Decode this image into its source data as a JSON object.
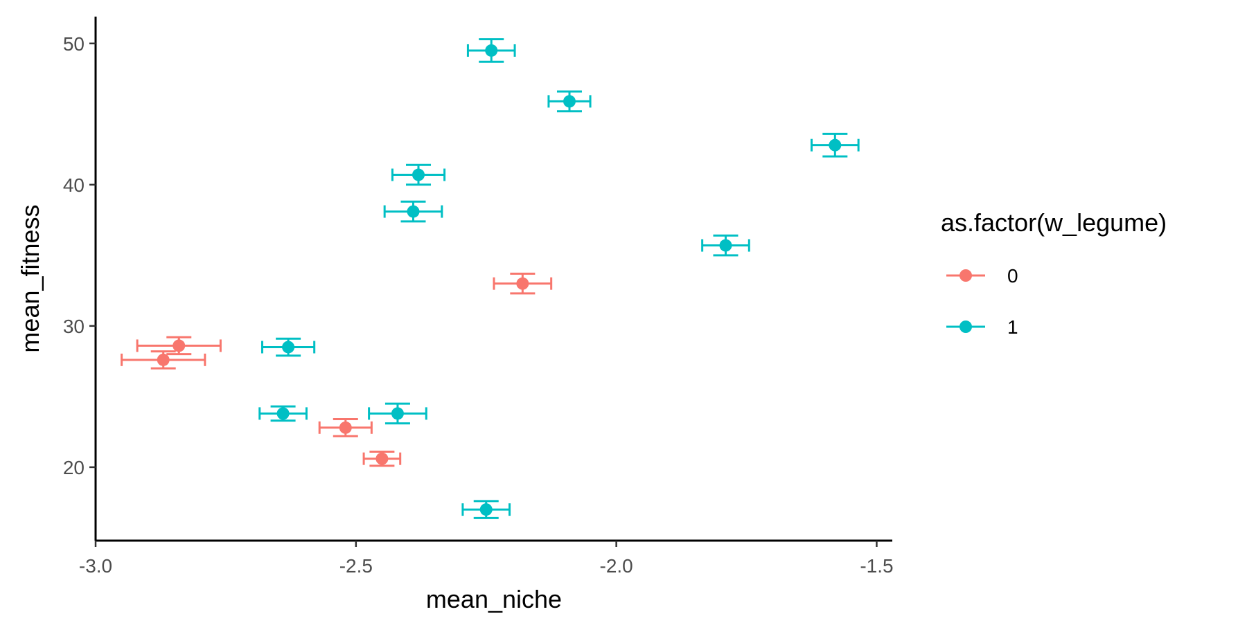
{
  "chart_data": {
    "type": "scatter",
    "xlabel": "mean_niche",
    "ylabel": "mean_fitness",
    "xlim": [
      -3.0,
      -1.47
    ],
    "ylim": [
      14.8,
      51.9
    ],
    "x_ticks": [
      -3.0,
      -2.5,
      -2.0,
      -1.5
    ],
    "x_tick_labels": [
      "-3.0",
      "-2.5",
      "-2.0",
      "-1.5"
    ],
    "y_ticks": [
      20,
      30,
      40,
      50
    ],
    "y_tick_labels": [
      "20",
      "30",
      "40",
      "50"
    ],
    "grid": false,
    "error_bars": "horizontal and vertical",
    "legend": {
      "title": "as.factor(w_legume)",
      "position": "right"
    },
    "series": [
      {
        "name": "0",
        "color": "#F8766D",
        "points": [
          {
            "x": -2.84,
            "y": 28.6,
            "xerr": 0.08,
            "yerr": 0.6
          },
          {
            "x": -2.87,
            "y": 27.6,
            "xerr": 0.08,
            "yerr": 0.6
          },
          {
            "x": -2.52,
            "y": 22.8,
            "xerr": 0.05,
            "yerr": 0.6
          },
          {
            "x": -2.45,
            "y": 20.6,
            "xerr": 0.035,
            "yerr": 0.5
          },
          {
            "x": -2.18,
            "y": 33.0,
            "xerr": 0.055,
            "yerr": 0.7
          }
        ]
      },
      {
        "name": "1",
        "color": "#00BFC4",
        "points": [
          {
            "x": -2.24,
            "y": 49.5,
            "xerr": 0.045,
            "yerr": 0.8
          },
          {
            "x": -2.09,
            "y": 45.9,
            "xerr": 0.04,
            "yerr": 0.7
          },
          {
            "x": -1.58,
            "y": 42.8,
            "xerr": 0.045,
            "yerr": 0.8
          },
          {
            "x": -2.38,
            "y": 40.7,
            "xerr": 0.05,
            "yerr": 0.7
          },
          {
            "x": -2.39,
            "y": 38.1,
            "xerr": 0.055,
            "yerr": 0.7
          },
          {
            "x": -1.79,
            "y": 35.7,
            "xerr": 0.045,
            "yerr": 0.7
          },
          {
            "x": -2.63,
            "y": 28.5,
            "xerr": 0.05,
            "yerr": 0.6
          },
          {
            "x": -2.64,
            "y": 23.8,
            "xerr": 0.045,
            "yerr": 0.5
          },
          {
            "x": -2.42,
            "y": 23.8,
            "xerr": 0.055,
            "yerr": 0.7
          },
          {
            "x": -2.25,
            "y": 17.0,
            "xerr": 0.045,
            "yerr": 0.6
          }
        ]
      }
    ]
  }
}
